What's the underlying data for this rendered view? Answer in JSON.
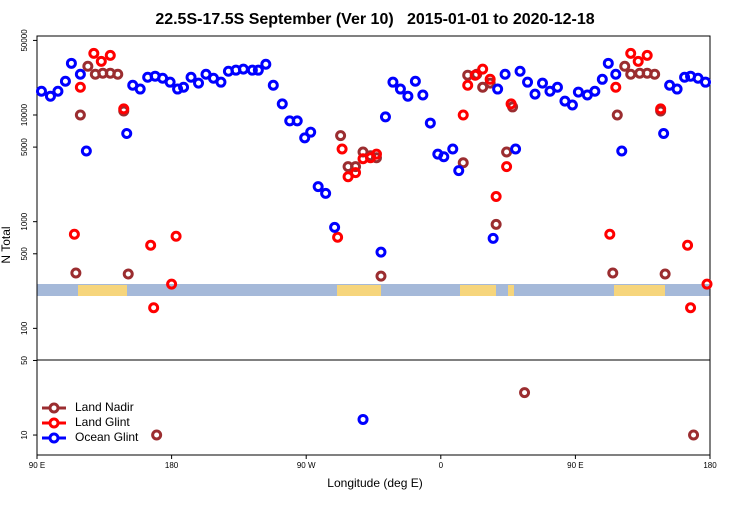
{
  "chart_data": {
    "type": "scatter",
    "title": "22.5S-17.5S September (Ver 10)   2015-01-01 to 2020-12-18",
    "xlabel": "Longitude (deg E)",
    "ylabel": "N Total",
    "xlim": [
      90,
      540
    ],
    "xticks": [
      {
        "value": 90,
        "label": "90 E"
      },
      180,
      {
        "value": 270,
        "label": "90 W"
      },
      {
        "value": 360,
        "label": "0"
      },
      {
        "value": 450,
        "label": "90 E"
      },
      {
        "value": 540,
        "label": "180"
      }
    ],
    "ylim": [
      6.5,
      55000
    ],
    "log_y": true,
    "yticks": [
      10,
      50,
      100,
      500,
      1000,
      5000,
      10000,
      50000
    ],
    "legend": "lower left",
    "series": [
      {
        "name": "Land Nadir",
        "color": "#9b2d30",
        "x": [
          116,
          119,
          124,
          129,
          134,
          139,
          144,
          148,
          151,
          170,
          293,
          298,
          303,
          308,
          313,
          317,
          320,
          375,
          378,
          384,
          388,
          393,
          397,
          404,
          408,
          416,
          475,
          478,
          483,
          487,
          493,
          498,
          503,
          507,
          510,
          529
        ],
        "values": [
          330,
          10000,
          28600,
          24100,
          24600,
          24600,
          24100,
          10900,
          323,
          10,
          6400,
          3280,
          3280,
          4500,
          4150,
          3970,
          309,
          3570,
          23600,
          24100,
          18200,
          19900,
          944,
          4500,
          11900,
          25,
          330,
          10000,
          28600,
          24100,
          24600,
          24600,
          24100,
          10900,
          323,
          10
        ]
      },
      {
        "name": "Land Glint",
        "color": "#ff0000",
        "x": [
          115,
          119,
          128,
          133,
          139,
          148,
          166,
          168,
          180,
          183,
          291,
          294,
          298,
          303,
          308,
          313,
          317,
          375,
          378,
          383,
          388,
          393,
          397,
          404,
          407,
          473,
          477,
          487,
          492,
          498,
          507,
          525,
          527,
          538
        ],
        "values": [
          762,
          18200,
          37800,
          31800,
          36200,
          11400,
          601,
          156,
          260,
          730,
          714,
          4800,
          2640,
          2880,
          3890,
          3970,
          4300,
          10000,
          19000,
          23600,
          26900,
          21600,
          1720,
          3280,
          12700,
          762,
          18200,
          37800,
          31800,
          36200,
          11400,
          601,
          156,
          260
        ]
      },
      {
        "name": "Ocean Glint",
        "color": "#0000ff",
        "x": [
          93,
          99,
          104,
          109,
          113,
          119,
          123,
          150,
          154,
          159,
          164,
          169,
          174,
          179,
          184,
          188,
          193,
          198,
          203,
          208,
          213,
          218,
          223,
          228,
          234,
          238,
          243,
          248,
          254,
          259,
          264,
          269,
          273,
          278,
          283,
          289,
          308,
          320,
          323,
          328,
          333,
          338,
          343,
          348,
          353,
          358,
          362,
          368,
          372,
          395,
          398,
          403,
          410,
          413,
          418,
          423,
          428,
          433,
          438,
          443,
          448,
          452,
          458,
          463,
          468,
          472,
          477,
          481,
          509,
          513,
          518,
          523,
          527,
          532,
          537
        ],
        "values": [
          16700,
          15000,
          16700,
          20700,
          30500,
          24100,
          4600,
          6700,
          19000,
          17500,
          22600,
          23100,
          22100,
          20300,
          17500,
          18200,
          22600,
          19900,
          24100,
          22100,
          20300,
          25700,
          26300,
          26900,
          26300,
          26300,
          29900,
          19000,
          12700,
          8800,
          8800,
          6100,
          6900,
          2130,
          1840,
          885,
          14,
          518,
          9600,
          20300,
          17500,
          15000,
          20700,
          15400,
          8400,
          4300,
          4060,
          4800,
          3010,
          698,
          17500,
          24100,
          4800,
          25700,
          20300,
          15700,
          19900,
          16700,
          18200,
          13500,
          12400,
          16400,
          15400,
          16700,
          21600,
          30500,
          24100,
          4600,
          6700,
          19000,
          17500,
          22600,
          23100,
          22100,
          20300
        ]
      }
    ]
  }
}
